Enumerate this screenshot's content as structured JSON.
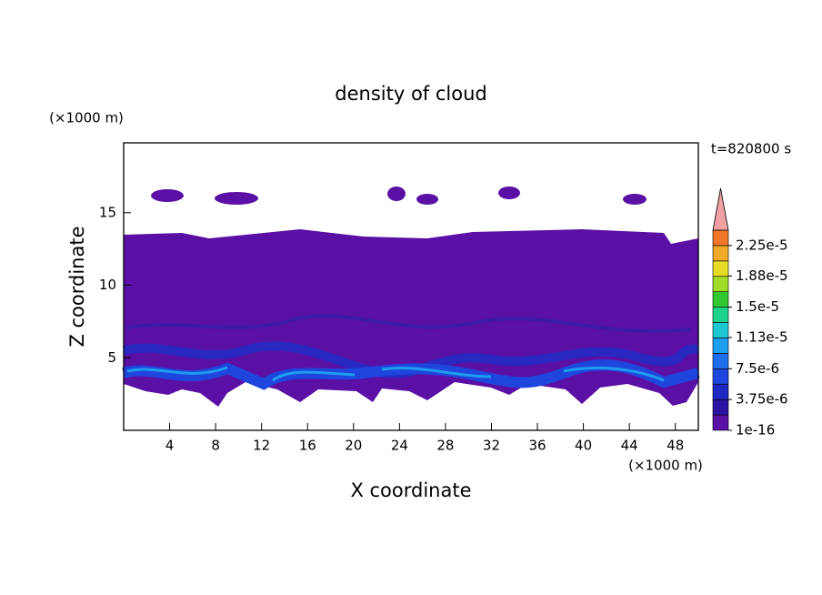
{
  "chart_data": {
    "type": "contour",
    "title": "density of cloud",
    "time_label": "t=820800 s",
    "x_label": "X coordinate",
    "y_label": "Z coordinate",
    "x_unit": "(×1000 m)",
    "y_unit": "(×1000 m)",
    "xlim": [
      0,
      50
    ],
    "xticks": [
      4,
      8,
      12,
      16,
      20,
      24,
      28,
      32,
      36,
      40,
      44,
      48
    ],
    "ylim": [
      0,
      20
    ],
    "yticks": [
      5,
      10,
      15
    ],
    "clim": [
      1e-16,
      2.4375e-05
    ],
    "cticks": [
      {
        "value": 1e-16,
        "label": "1e-16"
      },
      {
        "value": 3.75e-06,
        "label": "3.75e-6"
      },
      {
        "value": 7.5e-06,
        "label": "7.5e-6"
      },
      {
        "value": 1.13e-05,
        "label": "1.13e-5"
      },
      {
        "value": 1.5e-05,
        "label": "1.5e-5"
      },
      {
        "value": 1.88e-05,
        "label": "1.88e-5"
      },
      {
        "value": 2.25e-05,
        "label": "2.25e-5"
      }
    ],
    "colors": [
      "#5a0fa5",
      "#2814a0",
      "#1e28c0",
      "#1e46dc",
      "#1e6eec",
      "#1e9cf0",
      "#1ec8d2",
      "#1ed28c",
      "#32c832",
      "#a0dc28",
      "#e6dc28",
      "#f0aa28",
      "#f07828",
      "#e62828"
    ],
    "over_color": "#f0a0a0"
  }
}
